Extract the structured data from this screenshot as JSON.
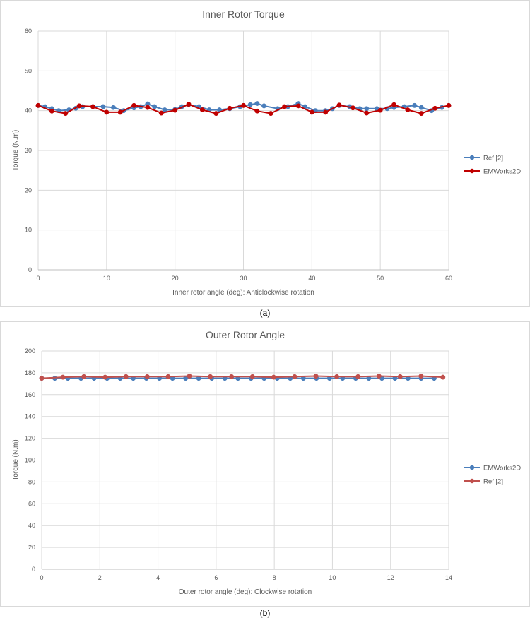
{
  "captions": {
    "a": "(a)",
    "b": "(b)"
  },
  "chart_data": [
    {
      "type": "line",
      "title": "Inner Rotor Torque",
      "xlabel": "Inner rotor angle (deg): Anticlockwise rotation",
      "ylabel": "Torque (N.m)",
      "xlim": [
        0,
        60
      ],
      "ylim": [
        0,
        60
      ],
      "xticks": [
        0,
        10,
        20,
        30,
        40,
        50,
        60
      ],
      "yticks": [
        0,
        10,
        20,
        30,
        40,
        50,
        60
      ],
      "grid": true,
      "legend_position": "right",
      "series": [
        {
          "name": "Ref [2]",
          "color": "#4a7ebb",
          "x": [
            0,
            1,
            2,
            3,
            4.5,
            5.5,
            6.5,
            8,
            9.5,
            11,
            12.5,
            14,
            15,
            16,
            17,
            18.5,
            20,
            21,
            22,
            23.5,
            25,
            26.5,
            28,
            29.5,
            31,
            32,
            33,
            35,
            36.5,
            38,
            39,
            40.5,
            42,
            43,
            44,
            45.5,
            47,
            48,
            49.5,
            51,
            52,
            53.5,
            55,
            56,
            57.5,
            59,
            60
          ],
          "y": [
            41.3,
            41.0,
            40.5,
            40.0,
            40.2,
            40.6,
            41.0,
            41.0,
            41.0,
            40.8,
            40.0,
            40.7,
            41.0,
            41.7,
            41.0,
            40.2,
            40.3,
            41.0,
            41.5,
            41.0,
            40.2,
            40.2,
            40.5,
            41.0,
            41.5,
            41.8,
            41.2,
            40.5,
            41.0,
            41.8,
            41.0,
            40.0,
            40.0,
            40.5,
            41.3,
            41.0,
            40.5,
            40.5,
            40.5,
            40.5,
            40.8,
            41.0,
            41.3,
            40.8,
            40.0,
            40.8,
            41.3
          ]
        },
        {
          "name": "EMWorks2D",
          "color": "#c00000",
          "x": [
            0,
            2,
            4,
            6,
            8,
            10,
            12,
            14,
            16,
            18,
            20,
            22,
            24,
            26,
            28,
            30,
            32,
            34,
            36,
            38,
            40,
            42,
            44,
            46,
            48,
            50,
            52,
            54,
            56,
            58,
            60
          ],
          "y": [
            41.3,
            39.9,
            39.3,
            41.2,
            41.0,
            39.6,
            39.6,
            41.3,
            40.8,
            39.4,
            40.1,
            41.6,
            40.2,
            39.3,
            40.6,
            41.3,
            39.9,
            39.3,
            41.0,
            41.2,
            39.6,
            39.6,
            41.4,
            40.7,
            39.4,
            40.1,
            41.5,
            40.2,
            39.3,
            40.6,
            41.3
          ]
        }
      ]
    },
    {
      "type": "line",
      "title": "Outer Rotor Angle",
      "xlabel": "Outer rotor angle (deg): Clockwise rotation",
      "ylabel": "Torque (N.m)",
      "xlim": [
        0,
        14
      ],
      "ylim": [
        0,
        200
      ],
      "xticks": [
        0,
        2,
        4,
        6,
        8,
        10,
        12,
        14
      ],
      "yticks": [
        0,
        20,
        40,
        60,
        80,
        100,
        120,
        140,
        160,
        180,
        200
      ],
      "grid": true,
      "legend_position": "right",
      "series": [
        {
          "name": "EMWorks2D",
          "color": "#4a7ebb",
          "x": [
            0,
            0.45,
            0.9,
            1.35,
            1.8,
            2.25,
            2.7,
            3.15,
            3.6,
            4.05,
            4.5,
            4.95,
            5.4,
            5.85,
            6.3,
            6.75,
            7.2,
            7.65,
            8.1,
            8.55,
            9.0,
            9.45,
            9.9,
            10.35,
            10.8,
            11.25,
            11.7,
            12.15,
            12.6,
            13.05,
            13.5
          ],
          "y": [
            175,
            175,
            175,
            175,
            175,
            175,
            175,
            175,
            175,
            175,
            175,
            175,
            175,
            175,
            175,
            175,
            175,
            175,
            175,
            175,
            175,
            175,
            175,
            175,
            175,
            175,
            175,
            175,
            175,
            175,
            175
          ]
        },
        {
          "name": "Ref [2]",
          "color": "#c0504d",
          "x": [
            0,
            0.73,
            1.45,
            2.18,
            2.9,
            3.63,
            4.35,
            5.08,
            5.8,
            6.53,
            7.25,
            7.98,
            8.7,
            9.43,
            10.15,
            10.88,
            11.6,
            12.33,
            13.05,
            13.8
          ],
          "y": [
            175,
            176,
            176.5,
            176,
            176.5,
            176.5,
            176.5,
            177,
            176.5,
            176.5,
            176.5,
            176,
            176.5,
            177,
            176.5,
            176.5,
            177,
            176.5,
            177,
            176
          ]
        }
      ]
    }
  ]
}
